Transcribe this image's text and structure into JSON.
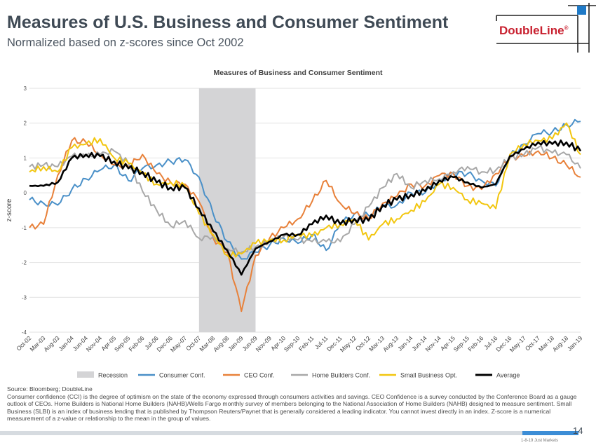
{
  "header": {
    "title": "Measures of U.S. Business and Consumer Sentiment",
    "subtitle": "Normalized based on z-scores since Oct 2002"
  },
  "logo": {
    "text": "DoubleLine",
    "mark": "®"
  },
  "chart_data": {
    "type": "line",
    "title": "Measures of Business and Consumer Sentiment",
    "xlabel": "",
    "ylabel": "z-score",
    "ylim": [
      -4,
      3
    ],
    "yticks": [
      3,
      2,
      1,
      0,
      -1,
      -2,
      -3,
      -4
    ],
    "grid": true,
    "legend_position": "bottom",
    "categories": [
      "Oct-02",
      "Mar-03",
      "Aug-03",
      "Jan-04",
      "Jun-04",
      "Nov-04",
      "Apr-05",
      "Sep-05",
      "Feb-06",
      "Jul-06",
      "Dec-06",
      "May-07",
      "Oct-07",
      "Mar-08",
      "Aug-08",
      "Jan-09",
      "Jun-09",
      "Nov-09",
      "Apr-10",
      "Sep-10",
      "Feb-11",
      "Jul-11",
      "Dec-11",
      "May-12",
      "Oct-12",
      "Mar-13",
      "Aug-13",
      "Jan-14",
      "Jun-14",
      "Nov-14",
      "Apr-15",
      "Sep-15",
      "Feb-16",
      "Jul-16",
      "Dec-16",
      "May-17",
      "Oct-17",
      "Mar-18",
      "Aug-18",
      "Jan-19"
    ],
    "recession": {
      "label": "Recession",
      "start": "Dec-07",
      "end": "Jun-09",
      "color": "#d4d4d6"
    },
    "series": [
      {
        "name": "Consumer Conf.",
        "color": "#4a90c8",
        "values": [
          -0.2,
          -0.3,
          -0.35,
          0.1,
          0.4,
          0.65,
          0.8,
          0.35,
          0.7,
          0.8,
          0.9,
          0.95,
          0.45,
          -0.6,
          -1.4,
          -1.9,
          -1.7,
          -1.5,
          -1.3,
          -1.45,
          -1.2,
          -1.65,
          -0.9,
          -0.6,
          -0.65,
          -0.4,
          -0.35,
          0.0,
          0.0,
          0.35,
          0.55,
          0.55,
          0.35,
          0.2,
          1.05,
          1.4,
          1.7,
          1.75,
          1.95,
          2.05
        ]
      },
      {
        "name": "CEO Conf.",
        "color": "#e8813a",
        "values": [
          -1.0,
          -0.9,
          0.5,
          1.5,
          1.45,
          1.1,
          0.8,
          0.75,
          1.1,
          0.55,
          0.3,
          0.25,
          -0.25,
          -1.3,
          -1.7,
          -3.4,
          -1.8,
          -1.3,
          -1.0,
          -0.75,
          -0.25,
          0.35,
          -0.3,
          -0.6,
          -0.75,
          -0.3,
          -0.1,
          0.25,
          0.2,
          0.5,
          0.55,
          0.2,
          0.1,
          0.55,
          1.0,
          1.05,
          1.2,
          1.0,
          0.8,
          0.45
        ]
      },
      {
        "name": "Home Builders Conf.",
        "color": "#a8a8a8",
        "values": [
          0.75,
          0.8,
          0.75,
          1.05,
          1.05,
          1.1,
          1.2,
          0.85,
          0.05,
          -0.5,
          -0.95,
          -0.8,
          -1.3,
          -1.25,
          -1.6,
          -1.7,
          -1.55,
          -1.4,
          -1.25,
          -1.35,
          -1.4,
          -1.4,
          -1.4,
          -0.9,
          -0.4,
          0.15,
          0.55,
          0.15,
          0.35,
          0.4,
          0.6,
          0.75,
          0.6,
          0.65,
          1.0,
          1.1,
          1.3,
          1.15,
          1.1,
          0.7
        ]
      },
      {
        "name": "Small Business Opt.",
        "color": "#f2c60f",
        "values": [
          0.6,
          0.75,
          0.6,
          1.3,
          1.4,
          1.55,
          1.0,
          0.85,
          0.55,
          0.25,
          0.3,
          0.2,
          -0.6,
          -1.2,
          -1.8,
          -1.75,
          -1.45,
          -1.35,
          -1.35,
          -1.2,
          -1.25,
          -1.0,
          -0.9,
          -0.75,
          -1.35,
          -0.9,
          -0.75,
          -0.5,
          -0.25,
          0.25,
          0.15,
          -0.2,
          -0.3,
          -0.45,
          1.1,
          1.4,
          1.5,
          1.55,
          2.0,
          1.1
        ]
      },
      {
        "name": "Average",
        "color": "#000000",
        "values": [
          0.2,
          0.2,
          0.3,
          1.0,
          1.1,
          1.05,
          0.9,
          0.7,
          0.6,
          0.3,
          0.15,
          0.15,
          -0.45,
          -1.1,
          -1.65,
          -2.35,
          -1.6,
          -1.4,
          -1.2,
          -1.2,
          -0.9,
          -0.65,
          -0.9,
          -0.75,
          -0.8,
          -0.35,
          -0.2,
          -0.05,
          0.05,
          0.35,
          0.45,
          0.3,
          0.15,
          0.25,
          1.05,
          1.25,
          1.45,
          1.4,
          1.45,
          1.2
        ]
      }
    ]
  },
  "footer": {
    "source": "Source: Bloomberg; DoubleLine",
    "lines": [
      "Consumer confidence (CCI) is the degree of optimism on the state of the economy expressed through consumers activities and savings. CEO Confidence is a survey conducted by the Conference Board as a gauge",
      "outlook of CEOs. Home Builders is National Home Builders (NAHB)/Wells Fargo monthly survey of members belonging to the National Association of Home Builders (NAHB) designed to measure sentiment. Small",
      "Business (SLBI) is an index of business lending that is published by Thompson Reuters/Paynet that is generally considered a leading indicator. You cannot invest directly in an index. Z-score is a numerical",
      "measurement of a z-value or relationship to the mean in the group of values."
    ],
    "page_number": "14",
    "code": "1-8-19 Just Markets"
  }
}
